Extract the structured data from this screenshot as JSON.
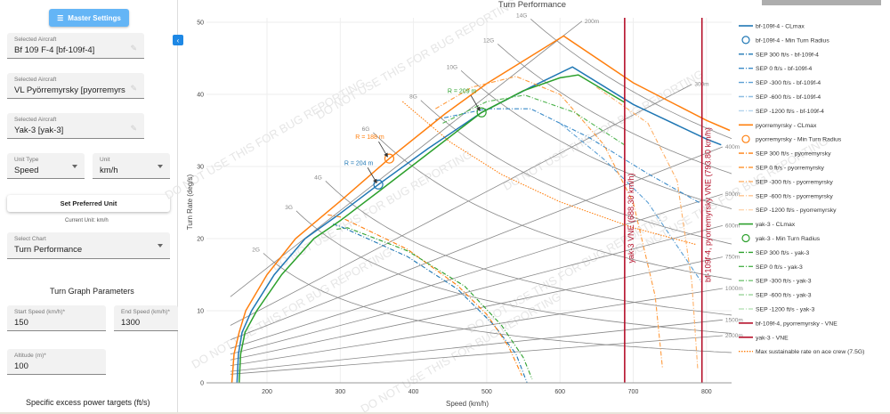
{
  "sidebar": {
    "master_settings": "Master Settings",
    "aircraft": [
      {
        "label": "Selected Aircraft",
        "value": "Bf 109 F-4 [bf-109f-4]"
      },
      {
        "label": "Selected Aircraft",
        "value": "VL Pyörremyrsky [pyorremyrsky]"
      },
      {
        "label": "Selected Aircraft",
        "value": "Yak-3 [yak-3]"
      }
    ],
    "unit_type": {
      "label": "Unit Type",
      "value": "Speed"
    },
    "unit": {
      "label": "Unit",
      "value": "km/h"
    },
    "set_preferred": "Set Preferred Unit",
    "current_unit": "Current Unit: km/h",
    "select_chart": {
      "label": "Select Chart",
      "value": "Turn Performance"
    },
    "turn_params_heading": "Turn Graph Parameters",
    "start_speed": {
      "label": "Start Speed (km/h)*",
      "value": "150"
    },
    "end_speed": {
      "label": "End Speed (km/h)*",
      "value": "1300"
    },
    "altitude": {
      "label": "Altitude (m)*",
      "value": "100"
    },
    "sep_heading": "Specific excess power targets (ft/s)"
  },
  "watermark": "DO NOT USE THIS FOR BUG REPORTING",
  "chart_data": {
    "type": "line",
    "title": "Turn Performance",
    "xlabel": "Speed (km/h)",
    "ylabel": "Turn Rate (deg/s)",
    "xlim": [
      117,
      832
    ],
    "ylim": [
      0,
      50
    ],
    "xticks": [
      200,
      300,
      400,
      500,
      600,
      700,
      800
    ],
    "yticks": [
      0,
      10,
      20,
      30,
      40,
      50
    ],
    "grid": true,
    "legend_position": "right",
    "colors": {
      "blue": "#1f77b4",
      "orange": "#ff7f0e",
      "green": "#2ca02c",
      "red": "#b5102a",
      "gray": "#888888"
    },
    "g_lines": [
      {
        "label": "2G",
        "n": 2,
        "start": 195
      },
      {
        "label": "3G",
        "n": 3,
        "start": 240
      },
      {
        "label": "4G",
        "n": 4,
        "start": 280
      },
      {
        "label": "6G",
        "n": 6,
        "start": 345
      },
      {
        "label": "8G",
        "n": 8,
        "start": 410
      },
      {
        "label": "10G",
        "n": 10,
        "start": 465
      },
      {
        "label": "12G",
        "n": 12,
        "start": 515
      },
      {
        "label": "14G",
        "n": 14,
        "start": 560
      }
    ],
    "radius_lines": [
      {
        "label": "200m",
        "r": 200,
        "end": 630
      },
      {
        "label": "300m",
        "r": 300,
        "end": 780
      },
      {
        "label": "400m",
        "r": 400,
        "end": 822
      },
      {
        "label": "500m",
        "r": 500,
        "end": 822
      },
      {
        "label": "600m",
        "r": 600,
        "end": 822
      },
      {
        "label": "750m",
        "r": 750,
        "end": 822
      },
      {
        "label": "1000m",
        "r": 1000,
        "end": 822
      },
      {
        "label": "1500m",
        "r": 1500,
        "end": 822
      },
      {
        "label": "2000m",
        "r": 2000,
        "end": 822
      }
    ],
    "series": [
      {
        "name": "bf-109f-4 - CLmax",
        "color": "#1f77b4",
        "style": "solid",
        "points": [
          [
            159,
            0
          ],
          [
            161,
            4
          ],
          [
            166,
            7
          ],
          [
            179,
            10
          ],
          [
            210,
            15
          ],
          [
            252,
            20
          ],
          [
            300,
            23.5
          ],
          [
            352,
            27.5
          ],
          [
            420,
            32.5
          ],
          [
            493,
            37.5
          ],
          [
            560,
            41
          ],
          [
            617,
            43.8
          ],
          [
            700,
            38.6
          ],
          [
            800,
            33.8
          ],
          [
            820,
            33
          ]
        ]
      },
      {
        "name": "bf-109f-4 - Min Turn Radius",
        "color": "#1f77b4",
        "style": "circle",
        "points": [
          [
            352,
            27.5
          ]
        ],
        "annotation": "R = 204 m"
      },
      {
        "name": "SEP 300 ft/s - bf-109f-4",
        "color": "#1f77b4",
        "style": "dashdot",
        "points": [
          [
            290,
            22
          ],
          [
            300,
            21.7
          ],
          [
            392,
            17.5
          ],
          [
            460,
            13
          ],
          [
            510,
            8
          ],
          [
            540,
            4
          ],
          [
            555,
            0
          ]
        ]
      },
      {
        "name": "SEP 0 ft/s - bf-109f-4",
        "color": "#3a8ac8",
        "style": "dashdot",
        "points": [
          [
            430,
            36.5
          ],
          [
            500,
            38
          ],
          [
            560,
            38
          ],
          [
            640,
            34
          ],
          [
            720,
            29
          ],
          [
            790,
            25
          ]
        ]
      },
      {
        "name": "SEP -300 ft/s - bf-109f-4",
        "color": "#5b9fd4",
        "style": "dashdot",
        "points": [
          [
            600,
            36
          ],
          [
            660,
            31
          ],
          [
            720,
            25
          ],
          [
            793,
            14
          ]
        ]
      },
      {
        "name": "SEP -600 ft/s - bf-109f-4",
        "color": "#8dbde3",
        "style": "dashdot",
        "points": []
      },
      {
        "name": "SEP -1200 ft/s - bf-109f-4",
        "color": "#b3d3ee",
        "style": "dashdot",
        "points": []
      },
      {
        "name": "pyorremyrsky - CLmax",
        "color": "#ff7f0e",
        "style": "solid",
        "points": [
          [
            152,
            0
          ],
          [
            155,
            4
          ],
          [
            162,
            7
          ],
          [
            171,
            10
          ],
          [
            200,
            15
          ],
          [
            239,
            20
          ],
          [
            300,
            25.2
          ],
          [
            367,
            31.1
          ],
          [
            443,
            37.3
          ],
          [
            500,
            41.5
          ],
          [
            605,
            48.1
          ],
          [
            700,
            41.6
          ],
          [
            800,
            36.4
          ],
          [
            832,
            35
          ]
        ]
      },
      {
        "name": "pyorremyrsky - Min Turn Radius",
        "color": "#ff7f0e",
        "style": "circle",
        "points": [
          [
            367,
            31.1
          ]
        ],
        "annotation": "R = 188 m"
      },
      {
        "name": "SEP 300 ft/s - pyorremyrsky",
        "color": "#ff7f0e",
        "style": "dashdot",
        "points": [
          [
            283,
            23.3
          ],
          [
            300,
            23
          ],
          [
            392,
            18.5
          ],
          [
            460,
            13.5
          ],
          [
            500,
            9.5
          ],
          [
            530,
            5
          ],
          [
            548,
            1
          ]
        ]
      },
      {
        "name": "SEP 0 ft/s - pyorremyrsky",
        "color": "#ff9a3c",
        "style": "dashdot",
        "points": [
          [
            430,
            38
          ],
          [
            480,
            41
          ],
          [
            540,
            42.5
          ],
          [
            600,
            40
          ],
          [
            660,
            33
          ],
          [
            700,
            25
          ],
          [
            730,
            12
          ],
          [
            740,
            2
          ]
        ]
      },
      {
        "name": "SEP -300 ft/s - pyorremyrsky",
        "color": "#ffb066",
        "style": "dashdot",
        "points": [
          [
            650,
            41
          ],
          [
            720,
            36
          ],
          [
            760,
            28
          ],
          [
            780,
            14
          ],
          [
            788,
            2
          ]
        ]
      },
      {
        "name": "SEP -600 ft/s - pyorremyrsky",
        "color": "#ffc48f",
        "style": "dashdot",
        "points": []
      },
      {
        "name": "SEP -1200 ft/s - pyorremyrsky",
        "color": "#ffd6b0",
        "style": "dashdot",
        "points": []
      },
      {
        "name": "yak-3 - CLmax",
        "color": "#2ca02c",
        "style": "solid",
        "points": [
          [
            162,
            0
          ],
          [
            164,
            4
          ],
          [
            170,
            7
          ],
          [
            186,
            10
          ],
          [
            220,
            15
          ],
          [
            264,
            20
          ],
          [
            300,
            22.5
          ],
          [
            352,
            26.5
          ],
          [
            420,
            31.8
          ],
          [
            493,
            37.5
          ],
          [
            550,
            40.5
          ],
          [
            600,
            42.3
          ],
          [
            625,
            42.7
          ],
          [
            688,
            38.9
          ]
        ]
      },
      {
        "name": "yak-3 - Min Turn Radius",
        "color": "#2ca02c",
        "style": "circle",
        "points": [
          [
            493,
            37.5
          ]
        ],
        "annotation": "R = 209 m"
      },
      {
        "name": "SEP 300 ft/s - yak-3",
        "color": "#2ca02c",
        "style": "dashdot",
        "points": [
          [
            295,
            21.3
          ],
          [
            310,
            21.5
          ],
          [
            392,
            18.3
          ],
          [
            470,
            13.4
          ],
          [
            520,
            8
          ],
          [
            550,
            3.5
          ],
          [
            562,
            0.5
          ]
        ]
      },
      {
        "name": "SEP 0 ft/s - yak-3",
        "color": "#4db34d",
        "style": "dashdot",
        "points": [
          [
            440,
            36
          ],
          [
            500,
            39
          ],
          [
            552,
            39.9
          ],
          [
            620,
            37.5
          ],
          [
            688,
            33
          ]
        ]
      },
      {
        "name": "SEP -300 ft/s - yak-3",
        "color": "#74c474",
        "style": "dashdot",
        "points": []
      },
      {
        "name": "SEP -600 ft/s - yak-3",
        "color": "#98d498",
        "style": "dashdot",
        "points": []
      },
      {
        "name": "SEP -1200 ft/s - yak-3",
        "color": "#bce3bc",
        "style": "dashdot",
        "points": []
      },
      {
        "name": "bf-109f-4, pyorremyrsky - VNE",
        "color": "#b5102a",
        "style": "vline",
        "x": 793.8,
        "label": "bf-109f-4, pyorremyrsky VNE (793.80 km/h)"
      },
      {
        "name": "yak-3 - VNE",
        "color": "#b5102a",
        "style": "vline",
        "x": 688.3,
        "label": "yak-3 VNE (688.30 km/h)"
      },
      {
        "name": "Max sustainable rate on ace crew (7.5G)",
        "color": "#ff7f0e",
        "style": "dotted",
        "points": [
          [
            385,
            39
          ],
          [
            450,
            33.4
          ],
          [
            520,
            28.9
          ],
          [
            600,
            25.1
          ],
          [
            700,
            21.5
          ],
          [
            785,
            19.2
          ]
        ]
      }
    ]
  }
}
